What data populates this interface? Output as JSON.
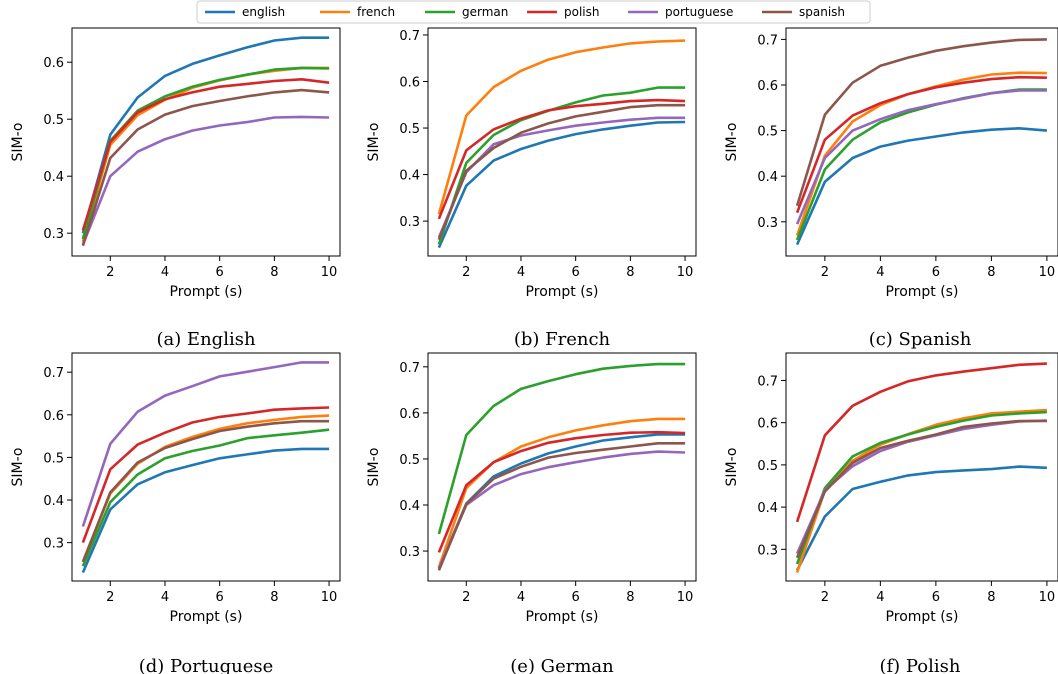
{
  "chart_data": [
    {
      "type": "line",
      "caption": "(a) English",
      "xlabel": "Prompt (s)",
      "ylabel": "SIM-o",
      "xlim": [
        0.6,
        10.4
      ],
      "ylim": [
        0.26,
        0.66
      ],
      "xticks": [
        2,
        4,
        6,
        8,
        10
      ],
      "yticks": [
        0.3,
        0.4,
        0.5,
        0.6
      ],
      "x": [
        1,
        2,
        3,
        4,
        5,
        6,
        7,
        8,
        9,
        10
      ],
      "series": [
        {
          "name": "english",
          "values": [
            0.3,
            0.473,
            0.538,
            0.576,
            0.597,
            0.612,
            0.626,
            0.638,
            0.643,
            0.643
          ]
        },
        {
          "name": "french",
          "values": [
            0.285,
            0.455,
            0.507,
            0.534,
            0.555,
            0.568,
            0.578,
            0.585,
            0.59,
            0.59
          ]
        },
        {
          "name": "german",
          "values": [
            0.29,
            0.462,
            0.515,
            0.54,
            0.557,
            0.569,
            0.578,
            0.587,
            0.59,
            0.589
          ]
        },
        {
          "name": "polish",
          "values": [
            0.305,
            0.46,
            0.512,
            0.535,
            0.547,
            0.557,
            0.562,
            0.567,
            0.57,
            0.564
          ]
        },
        {
          "name": "portuguese",
          "values": [
            0.28,
            0.4,
            0.443,
            0.465,
            0.48,
            0.489,
            0.495,
            0.503,
            0.504,
            0.503
          ]
        },
        {
          "name": "spanish",
          "values": [
            0.278,
            0.432,
            0.482,
            0.508,
            0.523,
            0.532,
            0.54,
            0.547,
            0.551,
            0.547
          ]
        }
      ]
    },
    {
      "type": "line",
      "caption": "(b) French",
      "xlabel": "Prompt (s)",
      "ylabel": "SIM-o",
      "xlim": [
        0.6,
        10.4
      ],
      "ylim": [
        0.225,
        0.715
      ],
      "xticks": [
        2,
        4,
        6,
        8,
        10
      ],
      "yticks": [
        0.3,
        0.4,
        0.5,
        0.6,
        0.7
      ],
      "x": [
        1,
        2,
        3,
        4,
        5,
        6,
        7,
        8,
        9,
        10
      ],
      "series": [
        {
          "name": "english",
          "values": [
            0.243,
            0.376,
            0.43,
            0.455,
            0.473,
            0.487,
            0.497,
            0.505,
            0.512,
            0.513
          ]
        },
        {
          "name": "french",
          "values": [
            0.315,
            0.527,
            0.588,
            0.623,
            0.647,
            0.663,
            0.673,
            0.682,
            0.686,
            0.688
          ]
        },
        {
          "name": "german",
          "values": [
            0.25,
            0.425,
            0.485,
            0.517,
            0.537,
            0.555,
            0.57,
            0.576,
            0.587,
            0.587
          ]
        },
        {
          "name": "polish",
          "values": [
            0.305,
            0.452,
            0.497,
            0.52,
            0.538,
            0.547,
            0.552,
            0.558,
            0.56,
            0.558
          ]
        },
        {
          "name": "portuguese",
          "values": [
            0.265,
            0.405,
            0.465,
            0.484,
            0.495,
            0.505,
            0.512,
            0.518,
            0.522,
            0.522
          ]
        },
        {
          "name": "spanish",
          "values": [
            0.26,
            0.408,
            0.457,
            0.49,
            0.51,
            0.525,
            0.535,
            0.545,
            0.549,
            0.549
          ]
        }
      ]
    },
    {
      "type": "line",
      "caption": "(c) Spanish",
      "xlabel": "Prompt (s)",
      "ylabel": "SIM-o",
      "xlim": [
        0.6,
        10.4
      ],
      "ylim": [
        0.225,
        0.725
      ],
      "xticks": [
        2,
        4,
        6,
        8,
        10
      ],
      "yticks": [
        0.3,
        0.4,
        0.5,
        0.6,
        0.7
      ],
      "x": [
        1,
        2,
        3,
        4,
        5,
        6,
        7,
        8,
        9,
        10
      ],
      "series": [
        {
          "name": "english",
          "values": [
            0.25,
            0.388,
            0.44,
            0.465,
            0.478,
            0.487,
            0.496,
            0.502,
            0.505,
            0.5
          ]
        },
        {
          "name": "french",
          "values": [
            0.27,
            0.445,
            0.52,
            0.556,
            0.58,
            0.597,
            0.612,
            0.623,
            0.627,
            0.626
          ]
        },
        {
          "name": "german",
          "values": [
            0.26,
            0.415,
            0.48,
            0.518,
            0.54,
            0.557,
            0.571,
            0.582,
            0.59,
            0.59
          ]
        },
        {
          "name": "polish",
          "values": [
            0.32,
            0.48,
            0.533,
            0.56,
            0.58,
            0.595,
            0.605,
            0.613,
            0.617,
            0.616
          ]
        },
        {
          "name": "portuguese",
          "values": [
            0.295,
            0.44,
            0.5,
            0.525,
            0.545,
            0.558,
            0.57,
            0.582,
            0.588,
            0.588
          ]
        },
        {
          "name": "spanish",
          "values": [
            0.335,
            0.535,
            0.605,
            0.642,
            0.66,
            0.675,
            0.685,
            0.693,
            0.699,
            0.7
          ]
        }
      ]
    },
    {
      "type": "line",
      "caption": "(d) Portuguese",
      "xlabel": "Prompt (s)",
      "ylabel": "SIM-o",
      "xlim": [
        0.6,
        10.4
      ],
      "ylim": [
        0.21,
        0.745
      ],
      "xticks": [
        2,
        4,
        6,
        8,
        10
      ],
      "yticks": [
        0.3,
        0.4,
        0.5,
        0.6,
        0.7
      ],
      "x": [
        1,
        2,
        3,
        4,
        5,
        6,
        7,
        8,
        9,
        10
      ],
      "series": [
        {
          "name": "english",
          "values": [
            0.23,
            0.378,
            0.437,
            0.465,
            0.482,
            0.498,
            0.507,
            0.516,
            0.52,
            0.52
          ]
        },
        {
          "name": "french",
          "values": [
            0.255,
            0.415,
            0.485,
            0.525,
            0.548,
            0.567,
            0.58,
            0.588,
            0.595,
            0.598
          ]
        },
        {
          "name": "german",
          "values": [
            0.245,
            0.395,
            0.46,
            0.498,
            0.515,
            0.528,
            0.545,
            0.552,
            0.558,
            0.565
          ]
        },
        {
          "name": "polish",
          "values": [
            0.3,
            0.472,
            0.53,
            0.558,
            0.582,
            0.595,
            0.603,
            0.612,
            0.615,
            0.617
          ]
        },
        {
          "name": "portuguese",
          "values": [
            0.338,
            0.532,
            0.607,
            0.645,
            0.667,
            0.69,
            0.701,
            0.712,
            0.723,
            0.723
          ]
        },
        {
          "name": "spanish",
          "values": [
            0.255,
            0.418,
            0.488,
            0.522,
            0.543,
            0.562,
            0.572,
            0.58,
            0.585,
            0.585
          ]
        }
      ]
    },
    {
      "type": "line",
      "caption": "(e) German",
      "xlabel": "Prompt (s)",
      "ylabel": "SIM-o",
      "xlim": [
        0.6,
        10.4
      ],
      "ylim": [
        0.235,
        0.73
      ],
      "xticks": [
        2,
        4,
        6,
        8,
        10
      ],
      "yticks": [
        0.3,
        0.4,
        0.5,
        0.6,
        0.7
      ],
      "x": [
        1,
        2,
        3,
        4,
        5,
        6,
        7,
        8,
        9,
        10
      ],
      "series": [
        {
          "name": "english",
          "values": [
            0.262,
            0.403,
            0.462,
            0.49,
            0.512,
            0.527,
            0.54,
            0.547,
            0.553,
            0.553
          ]
        },
        {
          "name": "french",
          "values": [
            0.265,
            0.437,
            0.493,
            0.527,
            0.547,
            0.562,
            0.573,
            0.582,
            0.587,
            0.587
          ]
        },
        {
          "name": "german",
          "values": [
            0.337,
            0.552,
            0.615,
            0.652,
            0.669,
            0.684,
            0.696,
            0.702,
            0.706,
            0.706
          ]
        },
        {
          "name": "polish",
          "values": [
            0.297,
            0.443,
            0.493,
            0.517,
            0.535,
            0.545,
            0.552,
            0.557,
            0.558,
            0.556
          ]
        },
        {
          "name": "portuguese",
          "values": [
            0.262,
            0.4,
            0.443,
            0.467,
            0.482,
            0.493,
            0.503,
            0.511,
            0.516,
            0.514
          ]
        },
        {
          "name": "spanish",
          "values": [
            0.258,
            0.402,
            0.457,
            0.483,
            0.503,
            0.513,
            0.52,
            0.527,
            0.534,
            0.534
          ]
        }
      ]
    },
    {
      "type": "line",
      "caption": "(f) Polish",
      "xlabel": "Prompt (s)",
      "ylabel": "SIM-o",
      "xlim": [
        0.6,
        10.4
      ],
      "ylim": [
        0.225,
        0.765
      ],
      "xticks": [
        2,
        4,
        6,
        8,
        10
      ],
      "yticks": [
        0.3,
        0.4,
        0.5,
        0.6,
        0.7
      ],
      "x": [
        1,
        2,
        3,
        4,
        5,
        6,
        7,
        8,
        9,
        10
      ],
      "series": [
        {
          "name": "english",
          "values": [
            0.25,
            0.378,
            0.443,
            0.46,
            0.475,
            0.483,
            0.487,
            0.49,
            0.496,
            0.493
          ]
        },
        {
          "name": "french",
          "values": [
            0.245,
            0.44,
            0.51,
            0.548,
            0.573,
            0.595,
            0.61,
            0.622,
            0.626,
            0.63
          ]
        },
        {
          "name": "german",
          "values": [
            0.265,
            0.445,
            0.52,
            0.552,
            0.572,
            0.59,
            0.605,
            0.617,
            0.622,
            0.625
          ]
        },
        {
          "name": "polish",
          "values": [
            0.365,
            0.57,
            0.64,
            0.673,
            0.698,
            0.712,
            0.721,
            0.729,
            0.737,
            0.74
          ]
        },
        {
          "name": "portuguese",
          "values": [
            0.29,
            0.44,
            0.497,
            0.533,
            0.555,
            0.57,
            0.585,
            0.595,
            0.603,
            0.605
          ]
        },
        {
          "name": "spanish",
          "values": [
            0.28,
            0.437,
            0.505,
            0.54,
            0.557,
            0.572,
            0.59,
            0.598,
            0.604,
            0.604
          ]
        }
      ]
    }
  ],
  "legend": {
    "placement": "top-center",
    "entries": [
      {
        "name": "english",
        "color": "#1f77b4"
      },
      {
        "name": "french",
        "color": "#ff7f0e"
      },
      {
        "name": "german",
        "color": "#2ca02c"
      },
      {
        "name": "polish",
        "color": "#d62728"
      },
      {
        "name": "portuguese",
        "color": "#9467bd"
      },
      {
        "name": "spanish",
        "color": "#8c564b"
      }
    ]
  }
}
